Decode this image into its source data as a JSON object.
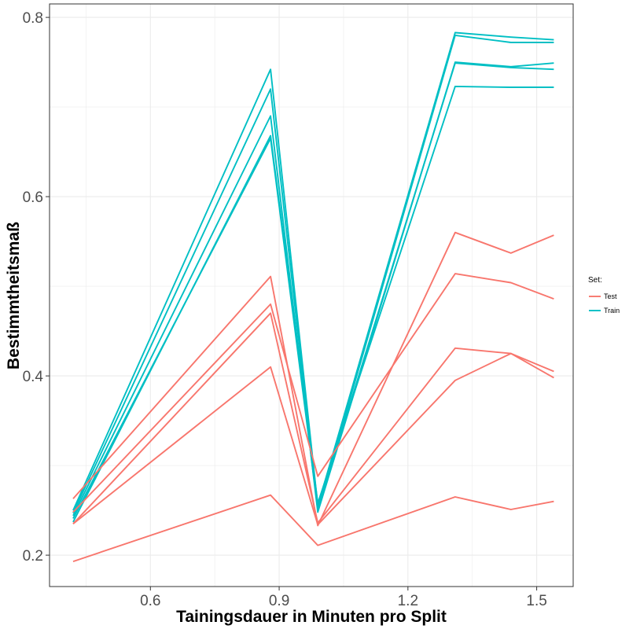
{
  "chart_data": {
    "type": "line",
    "title": "",
    "xlabel": "Tainingsdauer in Minuten pro Split",
    "ylabel": "Bestimmtheitsmaß",
    "xlim": [
      0.365,
      1.585
    ],
    "ylim": [
      0.165,
      0.815
    ],
    "x_ticks": [
      0.6,
      0.9,
      1.2,
      1.5
    ],
    "x_tick_labels": [
      "0.6",
      "0.9",
      "1.2",
      "1.5"
    ],
    "y_ticks": [
      0.2,
      0.4,
      0.6,
      0.8
    ],
    "y_tick_labels": [
      "0.2",
      "0.4",
      "0.6",
      "0.8"
    ],
    "grid": true,
    "legend": {
      "title": "Set:",
      "placement": "right",
      "entries": [
        {
          "label": "Test",
          "color": "#F8766D"
        },
        {
          "label": "Train",
          "color": "#00BFC4"
        }
      ]
    },
    "x": [
      0.42,
      0.88,
      0.99,
      1.31,
      1.44,
      1.54
    ],
    "series": [
      {
        "group": "Train",
        "color": "#00BFC4",
        "values": [
          0.25,
          0.742,
          0.255,
          0.783,
          0.778,
          0.775
        ]
      },
      {
        "group": "Train",
        "color": "#00BFC4",
        "values": [
          0.247,
          0.72,
          0.25,
          0.78,
          0.772,
          0.772
        ]
      },
      {
        "group": "Train",
        "color": "#00BFC4",
        "values": [
          0.244,
          0.69,
          0.248,
          0.75,
          0.745,
          0.749
        ]
      },
      {
        "group": "Train",
        "color": "#00BFC4",
        "values": [
          0.241,
          0.665,
          0.252,
          0.749,
          0.744,
          0.742
        ]
      },
      {
        "group": "Train",
        "color": "#00BFC4",
        "values": [
          0.237,
          0.668,
          0.258,
          0.723,
          0.722,
          0.722
        ]
      },
      {
        "group": "Test",
        "color": "#F8766D",
        "values": [
          0.263,
          0.511,
          0.233,
          0.56,
          0.537,
          0.557
        ]
      },
      {
        "group": "Test",
        "color": "#F8766D",
        "values": [
          0.248,
          0.48,
          0.288,
          0.514,
          0.504,
          0.486
        ]
      },
      {
        "group": "Test",
        "color": "#F8766D",
        "values": [
          0.235,
          0.47,
          0.236,
          0.431,
          0.425,
          0.398
        ]
      },
      {
        "group": "Test",
        "color": "#F8766D",
        "values": [
          0.235,
          0.41,
          0.234,
          0.395,
          0.425,
          0.405
        ]
      },
      {
        "group": "Test",
        "color": "#F8766D",
        "values": [
          0.193,
          0.267,
          0.211,
          0.265,
          0.251,
          0.26
        ]
      }
    ]
  }
}
